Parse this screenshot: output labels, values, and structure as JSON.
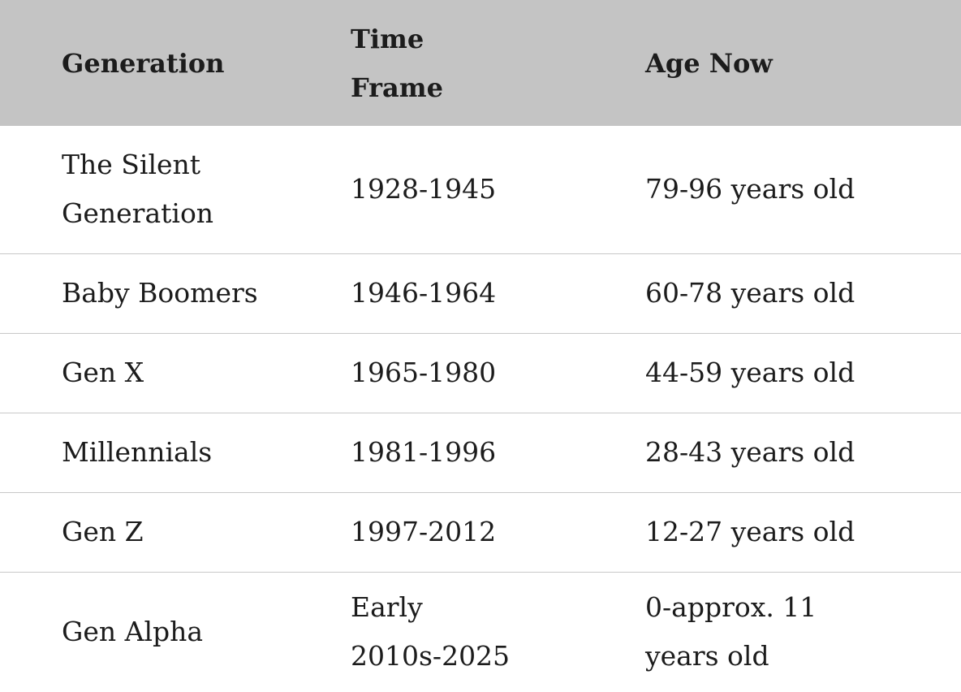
{
  "table": {
    "headers": [
      "Generation",
      "Time Frame",
      "Age Now"
    ],
    "header_lines": [
      [
        "Generation"
      ],
      [
        "Time",
        "Frame"
      ],
      [
        "Age Now"
      ]
    ],
    "rows": [
      {
        "generation": "The Silent Generation",
        "generation_lines": [
          "The Silent",
          "Generation"
        ],
        "time_frame": "1928-1945",
        "age_now": "79-96 years old"
      },
      {
        "generation": "Baby Boomers",
        "time_frame": "1946-1964",
        "age_now": "60-78 years old"
      },
      {
        "generation": "Gen X",
        "time_frame": "1965-1980",
        "age_now": "44-59 years old"
      },
      {
        "generation": "Millennials",
        "time_frame": "1981-1996",
        "age_now": "28-43 years old"
      },
      {
        "generation": "Gen Z",
        "time_frame": "1997-2012",
        "age_now": "12-27 years old"
      },
      {
        "generation": "Gen Alpha",
        "time_frame": "Early 2010s-2025",
        "time_frame_lines": [
          "Early",
          "2010s-2025"
        ],
        "age_now": "0-approx. 11 years old",
        "age_now_lines": [
          "0-approx. 11",
          "years old"
        ]
      }
    ]
  },
  "colors": {
    "header_bg": "#c4c4c4",
    "row_divider": "#c8c8c8",
    "text": "#1c1c1c"
  }
}
